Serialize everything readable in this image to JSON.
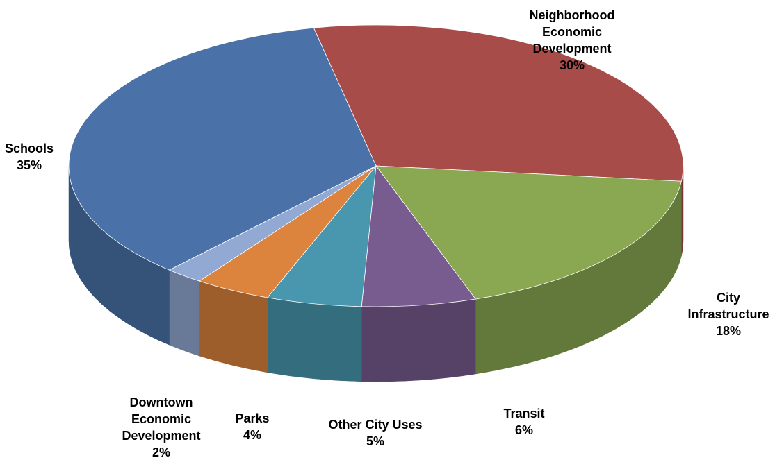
{
  "chart_data": {
    "type": "pie",
    "title": "",
    "categories": [
      "Neighborhood Economic Development",
      "City Infrastructure",
      "Transit",
      "Other City Uses",
      "Parks",
      "Downtown Economic Development",
      "Schools"
    ],
    "values": [
      30,
      18,
      6,
      5,
      4,
      2,
      35
    ],
    "value_suffix": "%",
    "legend": "none",
    "three_d": true,
    "colors": [
      "#A84C4A",
      "#8AA752",
      "#785B8F",
      "#4897AF",
      "#DC833D",
      "#92A9D4",
      "#4A72A8"
    ],
    "labels": [
      {
        "lines": [
          "Neighborhood",
          "Economic",
          "Development"
        ],
        "pct": "30%"
      },
      {
        "lines": [
          "City",
          "Infrastructure"
        ],
        "pct": "18%"
      },
      {
        "lines": [
          "Transit"
        ],
        "pct": "6%"
      },
      {
        "lines": [
          "Other City Uses"
        ],
        "pct": "5%"
      },
      {
        "lines": [
          "Parks"
        ],
        "pct": "4%"
      },
      {
        "lines": [
          "Downtown",
          "Economic",
          "Development"
        ],
        "pct": "2%"
      },
      {
        "lines": [
          "Schools"
        ],
        "pct": "35%"
      }
    ]
  }
}
